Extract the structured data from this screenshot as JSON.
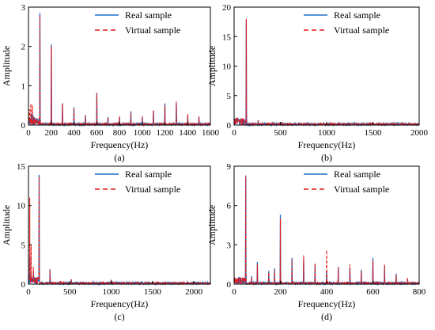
{
  "colors": {
    "real": "#1f6fc5",
    "virtual": "#e41a1c",
    "axis": "#000000"
  },
  "chart_data": [
    {
      "type": "line",
      "panel_label": "(a)",
      "xlabel": "Frequency(Hz)",
      "ylabel": "Amplitude",
      "xlim": [
        0,
        1600
      ],
      "ylim": [
        0,
        3
      ],
      "xticks": [
        0,
        200,
        400,
        600,
        800,
        1000,
        1200,
        1400,
        1600
      ],
      "yticks": [
        0,
        1,
        2,
        3
      ],
      "grid": false,
      "legend": "top-right",
      "series": [
        {
          "name": "Real sample",
          "style": "solid",
          "peaks": [
            [
              10,
              0.2
            ],
            [
              25,
              0.3
            ],
            [
              40,
              0.25
            ],
            [
              55,
              0.15
            ],
            [
              75,
              0.12
            ],
            [
              100,
              2.85
            ],
            [
              200,
              2.05
            ],
            [
              300,
              0.55
            ],
            [
              400,
              0.45
            ],
            [
              500,
              0.25
            ],
            [
              600,
              0.8
            ],
            [
              700,
              0.2
            ],
            [
              800,
              0.2
            ],
            [
              900,
              0.35
            ],
            [
              1000,
              0.2
            ],
            [
              1100,
              0.35
            ],
            [
              1200,
              0.55
            ],
            [
              1300,
              0.55
            ],
            [
              1400,
              0.25
            ],
            [
              1500,
              0.2
            ]
          ]
        },
        {
          "name": "Virtual sample",
          "style": "dashed",
          "peaks": [
            [
              10,
              0.4
            ],
            [
              20,
              0.55
            ],
            [
              35,
              0.5
            ],
            [
              50,
              0.2
            ],
            [
              70,
              0.15
            ],
            [
              100,
              2.8
            ],
            [
              200,
              2.0
            ],
            [
              300,
              0.55
            ],
            [
              400,
              0.45
            ],
            [
              500,
              0.25
            ],
            [
              600,
              0.82
            ],
            [
              700,
              0.2
            ],
            [
              800,
              0.22
            ],
            [
              900,
              0.35
            ],
            [
              1000,
              0.22
            ],
            [
              1100,
              0.38
            ],
            [
              1200,
              0.5
            ],
            [
              1300,
              0.6
            ],
            [
              1400,
              0.28
            ],
            [
              1500,
              0.22
            ]
          ]
        }
      ]
    },
    {
      "type": "line",
      "panel_label": "(b)",
      "xlabel": "Frequency(Hz)",
      "ylabel": "Amplitude",
      "xlim": [
        0,
        2000
      ],
      "ylim": [
        0,
        20
      ],
      "xticks": [
        0,
        500,
        1000,
        1500,
        2000
      ],
      "yticks": [
        0,
        5,
        10,
        15,
        20
      ],
      "grid": false,
      "legend": "top-right",
      "series": [
        {
          "name": "Real sample",
          "style": "solid",
          "peaks": [
            [
              130,
              17.8
            ],
            [
              260,
              0.8
            ],
            [
              390,
              0.3
            ],
            [
              520,
              0.5
            ],
            [
              650,
              0.3
            ],
            [
              780,
              0.4
            ],
            [
              910,
              0.3
            ],
            [
              1040,
              0.4
            ],
            [
              1170,
              0.3
            ],
            [
              1300,
              0.35
            ],
            [
              1430,
              0.2
            ],
            [
              1560,
              0.3
            ],
            [
              1690,
              0.2
            ],
            [
              1820,
              0.3
            ],
            [
              1950,
              0.2
            ]
          ]
        },
        {
          "name": "Virtual sample",
          "style": "dashed",
          "peaks": [
            [
              130,
              18.0
            ],
            [
              260,
              0.8
            ],
            [
              390,
              0.3
            ],
            [
              520,
              0.5
            ],
            [
              650,
              0.3
            ],
            [
              780,
              0.4
            ],
            [
              910,
              0.3
            ],
            [
              1040,
              0.45
            ],
            [
              1170,
              0.3
            ],
            [
              1300,
              0.35
            ],
            [
              1430,
              0.2
            ],
            [
              1560,
              0.3
            ],
            [
              1690,
              0.2
            ],
            [
              1820,
              0.3
            ],
            [
              1950,
              0.2
            ]
          ]
        }
      ]
    },
    {
      "type": "line",
      "panel_label": "(c)",
      "xlabel": "Frequency(Hz)",
      "ylabel": "Amplitude",
      "xlim": [
        0,
        2200
      ],
      "ylim": [
        0,
        15
      ],
      "xticks": [
        0,
        500,
        1000,
        1500,
        2000
      ],
      "yticks": [
        0,
        5,
        10,
        15
      ],
      "grid": false,
      "legend": "top-right",
      "series": [
        {
          "name": "Real sample",
          "style": "solid",
          "peaks": [
            [
              15,
              3.5
            ],
            [
              30,
              1.2
            ],
            [
              60,
              1.5
            ],
            [
              130,
              13.9
            ],
            [
              260,
              1.8
            ],
            [
              390,
              0.4
            ],
            [
              520,
              0.6
            ],
            [
              650,
              0.3
            ],
            [
              780,
              0.3
            ],
            [
              910,
              0.2
            ],
            [
              1000,
              0.5
            ],
            [
              1300,
              0.3
            ],
            [
              1560,
              0.3
            ],
            [
              1820,
              0.2
            ],
            [
              2080,
              0.2
            ]
          ]
        },
        {
          "name": "Virtual sample",
          "style": "dashed",
          "peaks": [
            [
              15,
              11.0
            ],
            [
              30,
              5.0
            ],
            [
              60,
              2.2
            ],
            [
              130,
              13.7
            ],
            [
              260,
              1.9
            ],
            [
              390,
              0.4
            ],
            [
              520,
              0.6
            ],
            [
              650,
              0.3
            ],
            [
              780,
              0.3
            ],
            [
              910,
              0.2
            ],
            [
              1000,
              0.55
            ],
            [
              1300,
              0.3
            ],
            [
              1560,
              0.3
            ],
            [
              1820,
              0.2
            ],
            [
              2080,
              0.2
            ]
          ]
        }
      ]
    },
    {
      "type": "line",
      "panel_label": "(d)",
      "xlabel": "Frequency(Hz)",
      "ylabel": "Amplitude",
      "xlim": [
        0,
        800
      ],
      "ylim": [
        0,
        9
      ],
      "xticks": [
        0,
        200,
        400,
        600,
        800
      ],
      "yticks": [
        0,
        3,
        6,
        9
      ],
      "grid": false,
      "legend": "top-right",
      "series": [
        {
          "name": "Real sample",
          "style": "solid",
          "peaks": [
            [
              20,
              0.4
            ],
            [
              50,
              8.2
            ],
            [
              75,
              0.6
            ],
            [
              100,
              1.7
            ],
            [
              150,
              1.0
            ],
            [
              175,
              1.2
            ],
            [
              200,
              5.3
            ],
            [
              250,
              2.0
            ],
            [
              300,
              1.8
            ],
            [
              350,
              1.5
            ],
            [
              400,
              1.0
            ],
            [
              450,
              1.3
            ],
            [
              500,
              1.3
            ],
            [
              550,
              1.1
            ],
            [
              600,
              2.0
            ],
            [
              650,
              1.4
            ],
            [
              700,
              0.8
            ],
            [
              750,
              0.4
            ]
          ]
        },
        {
          "name": "Virtual sample",
          "style": "dashed",
          "peaks": [
            [
              20,
              0.3
            ],
            [
              50,
              8.3
            ],
            [
              75,
              0.5
            ],
            [
              100,
              1.5
            ],
            [
              150,
              0.9
            ],
            [
              175,
              1.1
            ],
            [
              200,
              5.0
            ],
            [
              250,
              1.9
            ],
            [
              300,
              2.2
            ],
            [
              350,
              1.6
            ],
            [
              400,
              2.6
            ],
            [
              450,
              1.3
            ],
            [
              500,
              1.5
            ],
            [
              550,
              1.0
            ],
            [
              600,
              1.8
            ],
            [
              650,
              1.5
            ],
            [
              700,
              0.7
            ],
            [
              750,
              0.5
            ]
          ]
        }
      ]
    }
  ]
}
